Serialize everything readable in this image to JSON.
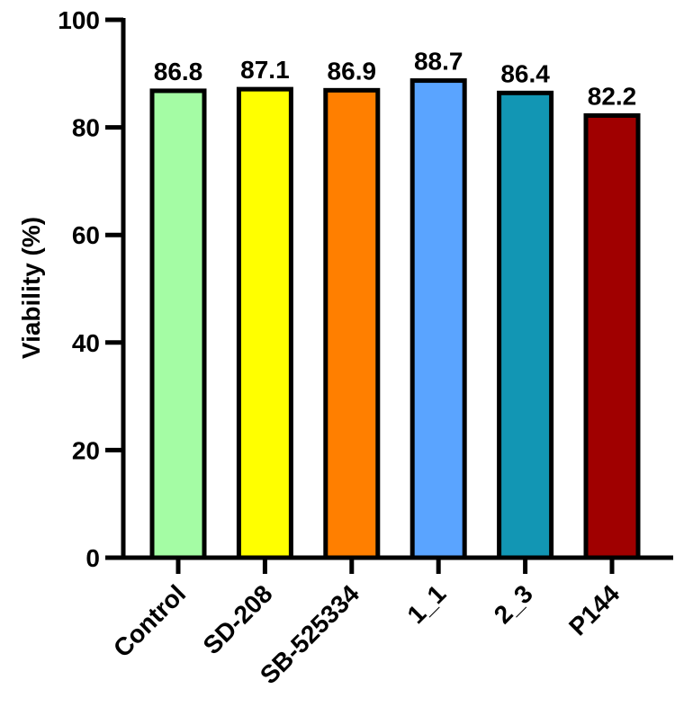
{
  "chart_data": {
    "type": "bar",
    "title": "",
    "xlabel": "",
    "ylabel": "Viability (%)",
    "ylim": [
      0,
      100
    ],
    "yticks": [
      "0",
      "20",
      "40",
      "60",
      "80",
      "100"
    ],
    "categories": [
      "Control",
      "SD-208",
      "SB-525334",
      "1_1",
      "2_3",
      "P144"
    ],
    "values": [
      86.8,
      87.1,
      86.9,
      88.7,
      86.4,
      82.2
    ],
    "data_labels": [
      "86.8",
      "87.1",
      "86.9",
      "88.7",
      "86.4",
      "82.2"
    ],
    "colors": [
      "#a4fca4",
      "#ffff00",
      "#ff7f00",
      "#5aa4ff",
      "#1296b4",
      "#a00000"
    ],
    "grid": false,
    "legend": "none"
  }
}
